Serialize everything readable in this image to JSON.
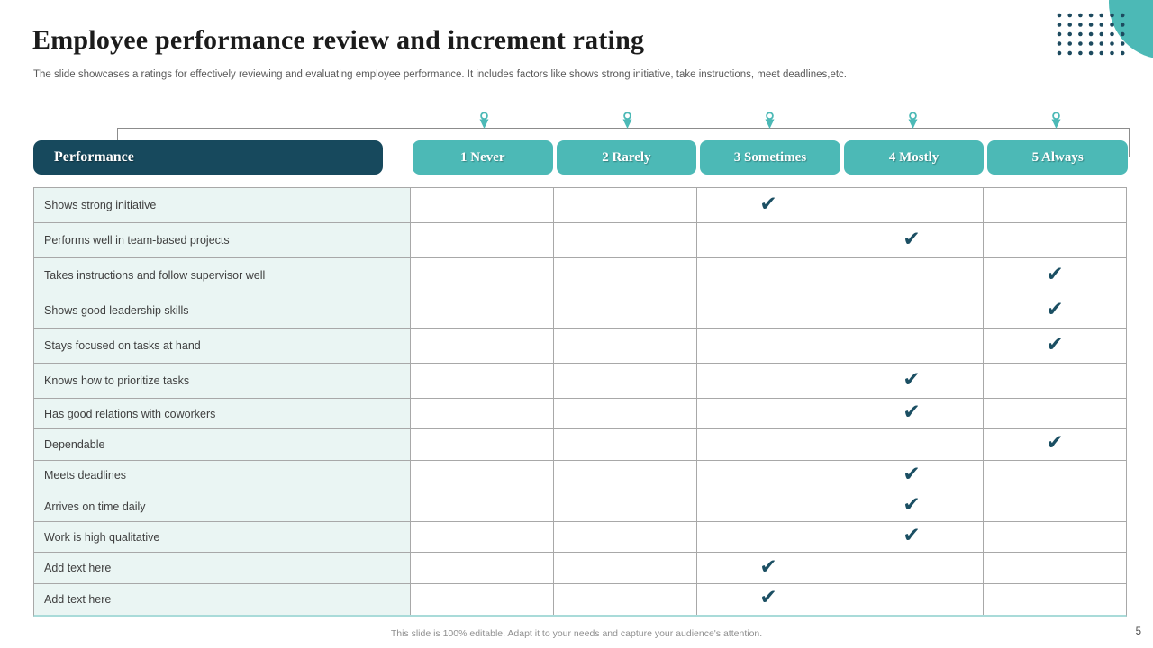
{
  "slide": {
    "title": "Employee performance review and increment rating",
    "subtitle": "The slide showcases a ratings for effectively reviewing and evaluating employee performance. It includes factors like shows strong initiative, take instructions, meet deadlines,etc.",
    "footer": "This slide is 100% editable.  Adapt it to your needs and capture your audience's attention.",
    "page_number": "5"
  },
  "colors": {
    "dark_teal": "#17495d",
    "teal": "#4cb9b6",
    "label_cell_bg": "#eaf5f3",
    "grid_line": "#a8a8a8",
    "check": "#1b4f63",
    "dots": "#1d4a5f"
  },
  "icons": {
    "check_glyph": "✔",
    "pin": "location-pin-icon",
    "dots_grid": "dot-grid-decoration",
    "circle": "corner-circle-decoration"
  },
  "table": {
    "header_label": "Performance",
    "ratings": [
      "1 Never",
      "2 Rarely",
      "3 Sometimes",
      "4 Mostly",
      "5 Always"
    ],
    "rows": [
      {
        "label": "Shows strong initiative",
        "rating": 3
      },
      {
        "label": "Performs well in team-based projects",
        "rating": 4
      },
      {
        "label": "Takes instructions and follow supervisor well",
        "rating": 5
      },
      {
        "label": "Shows  good leadership skills",
        "rating": 5
      },
      {
        "label": "Stays focused on tasks at hand",
        "rating": 5
      },
      {
        "label": "Knows how to prioritize tasks",
        "rating": 4
      },
      {
        "label": "Has good relations with coworkers",
        "rating": 4
      },
      {
        "label": "Dependable",
        "rating": 5
      },
      {
        "label": "Meets deadlines",
        "rating": 4
      },
      {
        "label": "Arrives on time daily",
        "rating": 4
      },
      {
        "label": "Work is high qualitative",
        "rating": 4
      },
      {
        "label": "Add text here",
        "rating": 3
      },
      {
        "label": "Add text here",
        "rating": 3
      }
    ]
  }
}
